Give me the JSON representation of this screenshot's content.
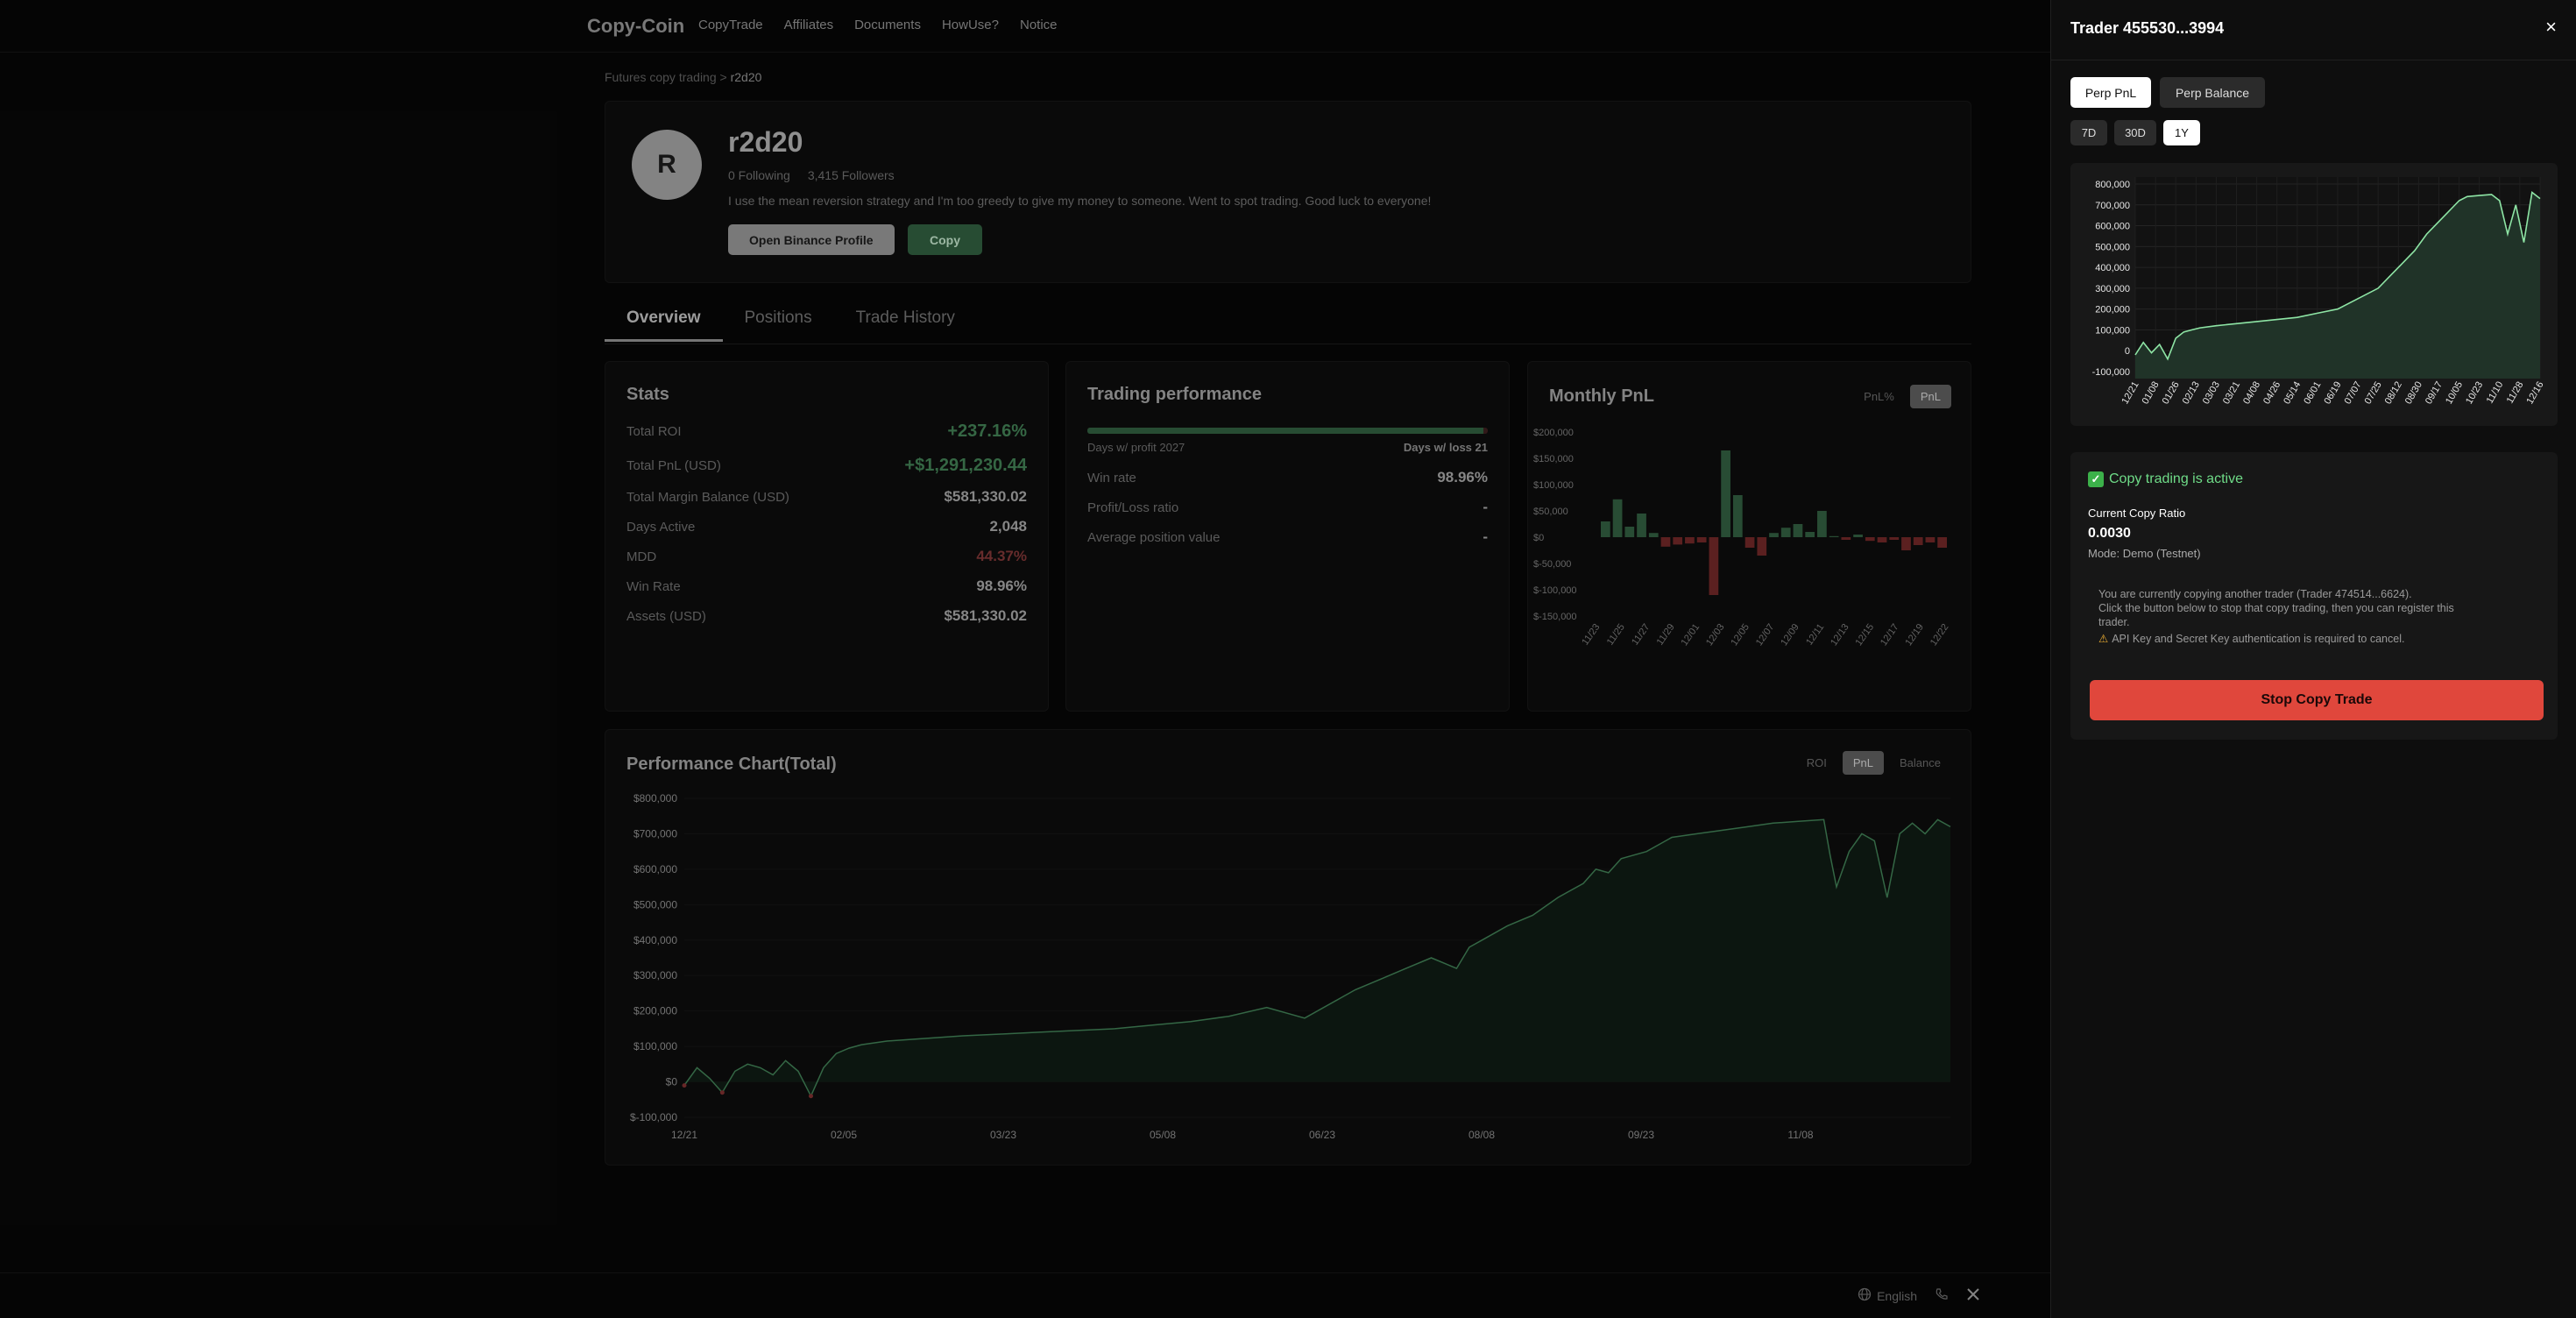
{
  "nav": {
    "brand": "Copy-Coin",
    "links": [
      "CopyTrade",
      "Affiliates",
      "Documents",
      "HowUse?",
      "Notice"
    ]
  },
  "breadcrumb": {
    "parent": "Futures copy trading",
    "sep": ">",
    "current": "r2d20"
  },
  "profile": {
    "initial": "R",
    "name": "r2d20",
    "following": "0 Following",
    "followers": "3,415 Followers",
    "bio": "I use the mean reversion strategy and I'm too greedy to give my money to someone. Went to spot trading. Good luck to everyone!",
    "open_binance": "Open Binance Profile",
    "copy": "Copy"
  },
  "tabs": [
    "Overview",
    "Positions",
    "Trade History"
  ],
  "stats": {
    "title": "Stats",
    "rows": [
      {
        "label": "Total ROI",
        "value": "+237.16%"
      },
      {
        "label": "Total PnL (USD)",
        "value": "+$1,291,230.44"
      },
      {
        "label": "Total Margin Balance (USD)",
        "value": "$581,330.02"
      },
      {
        "label": "Days Active",
        "value": "2,048"
      },
      {
        "label": "MDD",
        "value": "44.37%"
      },
      {
        "label": "Win Rate",
        "value": "98.96%"
      },
      {
        "label": "Assets (USD)",
        "value": "$581,330.02"
      }
    ]
  },
  "trading": {
    "title": "Trading performance",
    "profit_days": "Days w/ profit 2027",
    "loss_days": "Days w/ loss 21",
    "profit_ratio": 0.9897,
    "rows": [
      {
        "label": "Win rate",
        "value": "98.96%"
      },
      {
        "label": "Profit/Loss ratio",
        "value": "-"
      },
      {
        "label": "Average position value",
        "value": "-"
      }
    ]
  },
  "monthly": {
    "title": "Monthly PnL",
    "toggle": [
      "PnL%",
      "PnL"
    ],
    "active": "PnL"
  },
  "perf": {
    "title": "Performance Chart(Total)",
    "toggle": [
      "ROI",
      "PnL",
      "Balance"
    ],
    "active": "PnL"
  },
  "footer": {
    "language": "English"
  },
  "panel": {
    "title": "Trader 455530...3994",
    "close": "×",
    "tabs": [
      "Perp PnL",
      "Perp Balance"
    ],
    "ranges": [
      "7D",
      "30D",
      "1Y"
    ],
    "active_range": "1Y",
    "status": "Copy trading is active",
    "ratio_label": "Current Copy Ratio",
    "ratio_value": "0.0030",
    "mode": "Mode: Demo (Testnet)",
    "notice_1": "You are currently copying another trader (Trader 474514...6624).",
    "notice_2": "Click the button below to stop that copy trading, then you can register this",
    "notice_3": "trader.",
    "warning": "API Key and Secret Key authentication is required to cancel.",
    "stop": "Stop Copy Trade"
  },
  "chart_data": [
    {
      "type": "bar",
      "title": "Monthly PnL",
      "categories": [
        "11/23",
        "",
        "11/25",
        "",
        "11/27",
        "",
        "11/29",
        "",
        "12/01",
        "",
        "12/03",
        "",
        "12/05",
        "",
        "12/07",
        "",
        "12/09",
        "",
        "12/11",
        "",
        "12/13",
        "",
        "12/15",
        "",
        "12/17",
        "",
        "12/19",
        "",
        "12/22"
      ],
      "tick_labels": [
        "11/23",
        "11/25",
        "11/27",
        "11/29",
        "12/01",
        "12/03",
        "12/05",
        "12/07",
        "12/09",
        "12/11",
        "12/13",
        "12/15",
        "12/17",
        "12/19",
        "12/22"
      ],
      "values": [
        30000,
        72000,
        20000,
        45000,
        8000,
        -18000,
        -14000,
        -12000,
        -10000,
        -110000,
        165000,
        80000,
        -20000,
        -35000,
        8000,
        18000,
        25000,
        10000,
        50000,
        2000,
        -5000,
        5000,
        -7000,
        -10000,
        -5000,
        -25000,
        -15000,
        -10000,
        -20000
      ],
      "y_ticks": [
        "$200,000",
        "$150,000",
        "$100,000",
        "$50,000",
        "$0",
        "$-50,000",
        "$-100,000",
        "$-150,000"
      ],
      "ylim": [
        -150000,
        200000
      ],
      "colors": {
        "positive": "#2f5a3e",
        "negative": "#6b2626"
      }
    },
    {
      "type": "area",
      "title": "Performance Chart(Total)",
      "x_labels": [
        "12/21",
        "02/05",
        "03/23",
        "05/08",
        "06/23",
        "08/08",
        "09/23",
        "11/08"
      ],
      "y_ticks": [
        "$800,000",
        "$700,000",
        "$600,000",
        "$500,000",
        "$400,000",
        "$300,000",
        "$200,000",
        "$100,000",
        "$0",
        "$-100,000"
      ],
      "ylim": [
        -100000,
        800000
      ],
      "x": [
        0,
        0.01,
        0.02,
        0.03,
        0.04,
        0.05,
        0.06,
        0.07,
        0.08,
        0.09,
        0.1,
        0.11,
        0.12,
        0.13,
        0.14,
        0.16,
        0.18,
        0.2,
        0.22,
        0.25,
        0.28,
        0.31,
        0.34,
        0.37,
        0.4,
        0.43,
        0.46,
        0.49,
        0.52,
        0.53,
        0.55,
        0.57,
        0.59,
        0.61,
        0.62,
        0.63,
        0.65,
        0.67,
        0.69,
        0.71,
        0.72,
        0.73,
        0.74,
        0.76,
        0.78,
        0.8,
        0.82,
        0.84,
        0.86,
        0.88,
        0.9,
        0.905,
        0.91,
        0.92,
        0.93,
        0.94,
        0.95,
        0.96,
        0.97,
        0.98,
        0.99,
        1.0
      ],
      "values": [
        -10000,
        40000,
        10000,
        -30000,
        30000,
        50000,
        40000,
        20000,
        60000,
        30000,
        -40000,
        40000,
        80000,
        95000,
        105000,
        115000,
        120000,
        125000,
        130000,
        135000,
        140000,
        145000,
        150000,
        160000,
        170000,
        185000,
        210000,
        180000,
        240000,
        260000,
        290000,
        320000,
        350000,
        320000,
        380000,
        400000,
        440000,
        470000,
        520000,
        560000,
        600000,
        590000,
        630000,
        650000,
        690000,
        700000,
        710000,
        720000,
        730000,
        735000,
        740000,
        640000,
        550000,
        650000,
        700000,
        680000,
        520000,
        700000,
        730000,
        700000,
        740000,
        720000
      ],
      "colors": {
        "line": "#3e7a52",
        "fill": "#0f1a13",
        "negative": "#7a2e2e"
      }
    },
    {
      "type": "area",
      "title": "Perp PnL",
      "x_labels": [
        "12/21",
        "01/08",
        "01/26",
        "02/13",
        "03/03",
        "03/21",
        "04/08",
        "04/26",
        "05/14",
        "06/01",
        "06/19",
        "07/07",
        "07/25",
        "08/12",
        "08/30",
        "09/17",
        "10/05",
        "10/23",
        "11/10",
        "11/28",
        "12/16"
      ],
      "y_ticks": [
        "800,000",
        "700,000",
        "600,000",
        "500,000",
        "400,000",
        "300,000",
        "200,000",
        "100,000",
        "0",
        "-100,000"
      ],
      "ylim": [
        -100000,
        800000
      ],
      "x": [
        0,
        0.02,
        0.04,
        0.06,
        0.08,
        0.1,
        0.12,
        0.14,
        0.16,
        0.2,
        0.25,
        0.3,
        0.35,
        0.4,
        0.45,
        0.5,
        0.55,
        0.6,
        0.63,
        0.66,
        0.69,
        0.72,
        0.75,
        0.78,
        0.8,
        0.82,
        0.85,
        0.88,
        0.9,
        0.92,
        0.94,
        0.96,
        0.98,
        1.0
      ],
      "values": [
        -20000,
        40000,
        -10000,
        30000,
        -40000,
        60000,
        90000,
        100000,
        110000,
        120000,
        130000,
        140000,
        150000,
        160000,
        180000,
        200000,
        250000,
        300000,
        360000,
        420000,
        480000,
        560000,
        620000,
        680000,
        720000,
        740000,
        745000,
        750000,
        720000,
        560000,
        700000,
        520000,
        760000,
        730000
      ],
      "colors": {
        "line": "#8ee5a5",
        "fill": "#203328"
      }
    }
  ]
}
